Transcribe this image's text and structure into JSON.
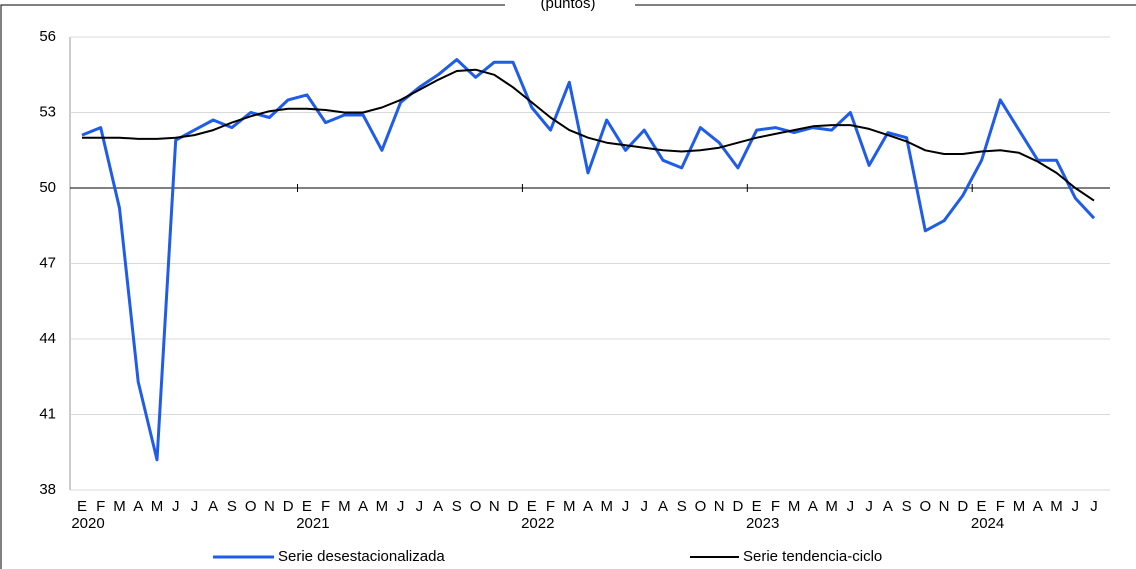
{
  "chart_data": {
    "type": "line",
    "title": "(puntos)",
    "categories": [
      "E",
      "F",
      "M",
      "A",
      "M",
      "J",
      "J",
      "A",
      "S",
      "O",
      "N",
      "D",
      "E",
      "F",
      "M",
      "A",
      "M",
      "J",
      "J",
      "A",
      "S",
      "O",
      "N",
      "D",
      "E",
      "F",
      "M",
      "A",
      "M",
      "J",
      "J",
      "A",
      "S",
      "O",
      "N",
      "D",
      "E",
      "F",
      "M",
      "A",
      "M",
      "J",
      "J",
      "A",
      "S",
      "O",
      "N",
      "D",
      "E",
      "F",
      "M",
      "A",
      "M",
      "J",
      "J"
    ],
    "year_groups": [
      "2020",
      "2021",
      "2022",
      "2023",
      "2024"
    ],
    "series": [
      {
        "name": "Serie desestacionalizada",
        "color": "#1f5ce8",
        "values": [
          52.1,
          52.4,
          49.2,
          42.3,
          39.2,
          51.9,
          52.3,
          52.7,
          52.4,
          53.0,
          52.8,
          53.5,
          53.7,
          52.6,
          52.9,
          52.9,
          51.5,
          53.4,
          54.0,
          54.5,
          55.1,
          54.4,
          55.0,
          55.0,
          53.2,
          52.3,
          54.2,
          50.6,
          52.7,
          51.5,
          52.3,
          51.1,
          50.8,
          52.4,
          51.8,
          50.8,
          52.3,
          52.4,
          52.2,
          52.4,
          52.3,
          53.0,
          50.9,
          52.2,
          52.0,
          48.3,
          48.7,
          49.7,
          51.1,
          53.5,
          52.3,
          51.1,
          51.1,
          49.6,
          48.8
        ]
      },
      {
        "name": "Serie tendencia-ciclo",
        "color": "#000000",
        "values": [
          52.0,
          52.0,
          52.0,
          51.95,
          51.95,
          52.0,
          52.1,
          52.3,
          52.6,
          52.85,
          53.05,
          53.15,
          53.15,
          53.1,
          53.0,
          53.0,
          53.2,
          53.5,
          53.9,
          54.3,
          54.65,
          54.7,
          54.5,
          54.0,
          53.4,
          52.8,
          52.3,
          52.0,
          51.8,
          51.7,
          51.6,
          51.5,
          51.45,
          51.5,
          51.6,
          51.8,
          52.0,
          52.15,
          52.3,
          52.45,
          52.5,
          52.5,
          52.35,
          52.1,
          51.85,
          51.5,
          51.35,
          51.35,
          51.45,
          51.5,
          51.4,
          51.05,
          50.6,
          50.0,
          49.5
        ]
      }
    ],
    "ylim": [
      38,
      56
    ],
    "yticks": [
      38,
      41,
      44,
      47,
      50,
      53,
      56
    ],
    "grid": true,
    "axis_crossing": 50,
    "legend": "bottom"
  }
}
